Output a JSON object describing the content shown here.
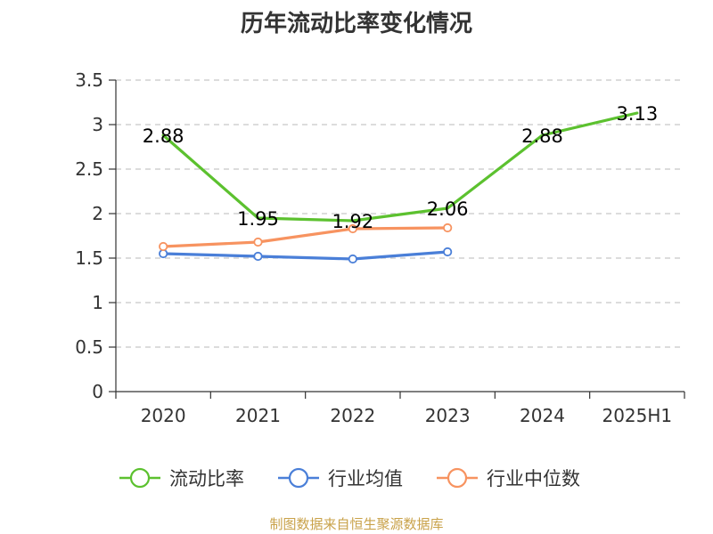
{
  "chart_data": {
    "type": "line",
    "title": "历年流动比率变化情况",
    "categories": [
      "2020",
      "2021",
      "2022",
      "2023",
      "2024",
      "2025H1"
    ],
    "y_ticks": [
      "0",
      "0.5",
      "1",
      "1.5",
      "2",
      "2.5",
      "3",
      "3.5"
    ],
    "ylim": [
      0,
      3.5
    ],
    "grid": true,
    "legend_position": "bottom",
    "series": [
      {
        "name": "流动比率",
        "color": "#5cc12f",
        "values": [
          2.88,
          1.95,
          1.92,
          2.06,
          2.88,
          3.13
        ],
        "labels": [
          "2.88",
          "1.95",
          "1.92",
          "2.06",
          "2.88",
          "3.13"
        ],
        "show_labels": true,
        "show_markers": false
      },
      {
        "name": "行业均值",
        "color": "#4a7fd8",
        "values": [
          1.55,
          1.52,
          1.49,
          1.57,
          null,
          null
        ],
        "show_labels": false,
        "show_markers": true
      },
      {
        "name": "行业中位数",
        "color": "#f79360",
        "values": [
          1.63,
          1.68,
          1.83,
          1.84,
          null,
          null
        ],
        "show_labels": false,
        "show_markers": true
      }
    ]
  },
  "source_note": "制图数据来自恒生聚源数据库"
}
